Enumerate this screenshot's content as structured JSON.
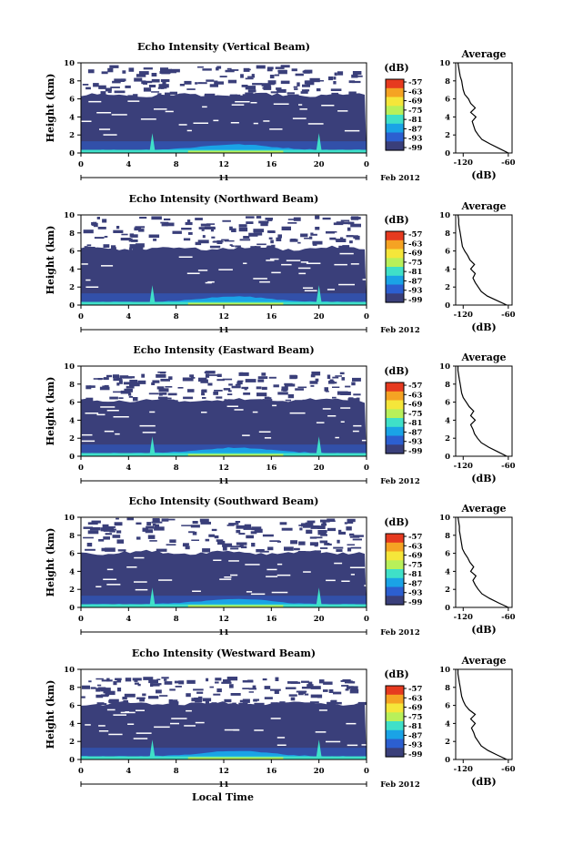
{
  "figure": {
    "common_xlabel": "Local Time"
  },
  "colorbar": {
    "unit_label": "(dB)",
    "ticks": [
      "-57",
      "-63",
      "-69",
      "-75",
      "-81",
      "-87",
      "-93",
      "-99"
    ],
    "colors": [
      "#3a3f7a",
      "#2c5fd0",
      "#1aa3e6",
      "#3fe0c8",
      "#b8f05a",
      "#f5e63a",
      "#f5a323",
      "#e63a1f"
    ]
  },
  "chart_data": [
    {
      "type": "heatmap",
      "title": "Echo Intensity (Vertical Beam)",
      "ylabel": "Height (km)",
      "xticks": [
        "0",
        "4",
        "8",
        "12",
        "16",
        "20",
        "0"
      ],
      "yticks": [
        "0",
        "2",
        "4",
        "6",
        "8",
        "10"
      ],
      "xlim": [
        0,
        24
      ],
      "ylim": [
        0,
        10
      ],
      "date_day": "11",
      "date_month": "Feb 2012",
      "echo_top_km": 6.4,
      "noise_band_top_km": 9.8,
      "profile": {
        "title": "Average",
        "xlabel": "(dB)",
        "xticks": [
          "-120",
          "-60"
        ],
        "yticks": [
          "0",
          "2",
          "4",
          "6",
          "8",
          "10"
        ],
        "xlim": [
          -130,
          -55
        ],
        "height_km": [
          0,
          0.5,
          1,
          1.5,
          2,
          2.5,
          3,
          3.5,
          4,
          4.5,
          5,
          5.5,
          6,
          6.5,
          7,
          7.5,
          8,
          8.5,
          9,
          9.5,
          10
        ],
        "db": [
          -60,
          -72,
          -84,
          -95,
          -100,
          -104,
          -106,
          -108,
          -103,
          -110,
          -104,
          -110,
          -113,
          -118,
          -120,
          -121,
          -122,
          -124,
          -125,
          -126,
          -127
        ]
      }
    },
    {
      "type": "heatmap",
      "title": "Echo Intensity (Northward Beam)",
      "ylabel": "Height (km)",
      "xticks": [
        "0",
        "4",
        "8",
        "12",
        "16",
        "20",
        "0"
      ],
      "yticks": [
        "0",
        "2",
        "4",
        "6",
        "8",
        "10"
      ],
      "xlim": [
        0,
        24
      ],
      "ylim": [
        0,
        10
      ],
      "date_day": "11",
      "date_month": "Feb 2012",
      "echo_top_km": 6.3,
      "noise_band_top_km": 10,
      "profile": {
        "title": "Average",
        "xlabel": "(dB)",
        "xticks": [
          "-120",
          "-60"
        ],
        "yticks": [
          "0",
          "2",
          "4",
          "6",
          "8",
          "10"
        ],
        "xlim": [
          -130,
          -55
        ],
        "height_km": [
          0,
          0.5,
          1,
          1.5,
          2,
          2.5,
          3,
          3.5,
          4,
          4.5,
          5,
          5.5,
          6,
          6.5,
          7,
          7.5,
          8,
          8.5,
          9,
          9.5,
          10
        ],
        "db": [
          -62,
          -75,
          -88,
          -96,
          -100,
          -104,
          -107,
          -104,
          -110,
          -105,
          -111,
          -114,
          -118,
          -121,
          -122,
          -123,
          -124,
          -125,
          -126,
          -126,
          -127
        ]
      }
    },
    {
      "type": "heatmap",
      "title": "Echo Intensity (Eastward Beam)",
      "ylabel": "Height (km)",
      "xticks": [
        "0",
        "4",
        "8",
        "12",
        "16",
        "20",
        "0"
      ],
      "yticks": [
        "0",
        "2",
        "4",
        "6",
        "8",
        "10"
      ],
      "xlim": [
        0,
        24
      ],
      "ylim": [
        0,
        10
      ],
      "date_day": "11",
      "date_month": "Feb 2012",
      "echo_top_km": 6.2,
      "noise_band_top_km": 9.5,
      "profile": {
        "title": "Average",
        "xlabel": "(dB)",
        "xticks": [
          "-120",
          "-60"
        ],
        "yticks": [
          "0",
          "2",
          "4",
          "6",
          "8",
          "10"
        ],
        "xlim": [
          -130,
          -55
        ],
        "height_km": [
          0,
          0.5,
          1,
          1.5,
          2,
          2.5,
          3,
          3.5,
          4,
          4.5,
          5,
          5.5,
          6,
          6.5,
          7,
          7.5,
          8,
          8.5,
          9,
          9.5,
          10
        ],
        "db": [
          -62,
          -74,
          -86,
          -96,
          -101,
          -105,
          -107,
          -110,
          -104,
          -110,
          -106,
          -112,
          -116,
          -120,
          -122,
          -123,
          -124,
          -125,
          -126,
          -127,
          -127
        ]
      }
    },
    {
      "type": "heatmap",
      "title": "Echo Intensity (Southward Beam)",
      "ylabel": "Height (km)",
      "xticks": [
        "0",
        "4",
        "8",
        "12",
        "16",
        "20",
        "0"
      ],
      "yticks": [
        "0",
        "2",
        "4",
        "6",
        "8",
        "10"
      ],
      "xlim": [
        0,
        24
      ],
      "ylim": [
        0,
        10
      ],
      "date_day": "11",
      "date_month": "Feb 2012",
      "echo_top_km": 6.1,
      "noise_band_top_km": 10,
      "profile": {
        "title": "Average",
        "xlabel": "(dB)",
        "xticks": [
          "-120",
          "-60"
        ],
        "yticks": [
          "0",
          "2",
          "4",
          "6",
          "8",
          "10"
        ],
        "xlim": [
          -130,
          -55
        ],
        "height_km": [
          0,
          0.5,
          1,
          1.5,
          2,
          2.5,
          3,
          3.5,
          4,
          4.5,
          5,
          5.5,
          6,
          6.5,
          7,
          7.5,
          8,
          8.5,
          9,
          9.5,
          10
        ],
        "db": [
          -60,
          -73,
          -85,
          -95,
          -100,
          -104,
          -107,
          -103,
          -110,
          -106,
          -111,
          -114,
          -118,
          -121,
          -122,
          -123,
          -124,
          -125,
          -125,
          -126,
          -127
        ]
      }
    },
    {
      "type": "heatmap",
      "title": "Echo Intensity (Westward Beam)",
      "ylabel": "Height (km)",
      "xticks": [
        "0",
        "4",
        "8",
        "12",
        "16",
        "20",
        "0"
      ],
      "yticks": [
        "0",
        "2",
        "4",
        "6",
        "8",
        "10"
      ],
      "xlim": [
        0,
        24
      ],
      "ylim": [
        0,
        10
      ],
      "date_day": "11",
      "date_month": "Feb 2012",
      "echo_top_km": 6.2,
      "noise_band_top_km": 9.2,
      "profile": {
        "title": "Average",
        "xlabel": "(dB)",
        "xticks": [
          "-120",
          "-60"
        ],
        "yticks": [
          "0",
          "2",
          "4",
          "6",
          "8",
          "10"
        ],
        "xlim": [
          -130,
          -55
        ],
        "height_km": [
          0,
          0.5,
          1,
          1.5,
          2,
          2.5,
          3,
          3.5,
          4,
          4.5,
          5,
          5.5,
          6,
          6.5,
          7,
          7.5,
          8,
          8.5,
          9,
          9.5,
          10
        ],
        "db": [
          -62,
          -75,
          -87,
          -96,
          -100,
          -104,
          -106,
          -109,
          -104,
          -110,
          -104,
          -112,
          -117,
          -120,
          -122,
          -123,
          -124,
          -125,
          -126,
          -127,
          -127
        ]
      }
    }
  ]
}
